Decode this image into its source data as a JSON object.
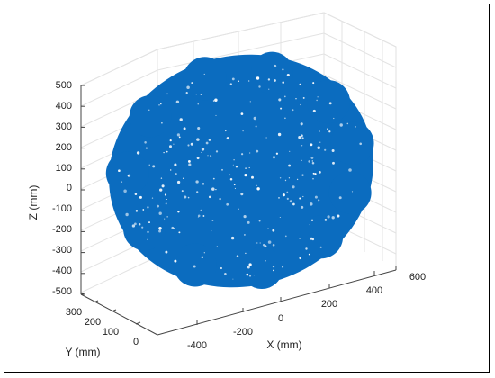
{
  "chart_data": {
    "type": "scatter",
    "title": "",
    "xlabel": "X (mm)",
    "ylabel": "Y (mm)",
    "zlabel": "Z (mm)",
    "xlim": [
      -500,
      600
    ],
    "ylim": [
      0,
      300
    ],
    "zlim": [
      -500,
      500
    ],
    "x_ticks": [
      "-400",
      "-200",
      "0",
      "200",
      "400",
      "600"
    ],
    "y_ticks": [
      "0",
      "100",
      "200",
      "300"
    ],
    "z_ticks": [
      "500",
      "400",
      "300",
      "200",
      "100",
      "0",
      "-100",
      "-200",
      "-300",
      "-400",
      "-500"
    ],
    "grid": true,
    "marker_color": "#0b6cbf",
    "series": [
      {
        "shape": "ellipsoid point cloud",
        "center": {
          "x": 0,
          "y": 150,
          "z": 0
        },
        "x_range": [
          -470,
          520
        ],
        "z_range": [
          -500,
          500
        ]
      }
    ]
  }
}
